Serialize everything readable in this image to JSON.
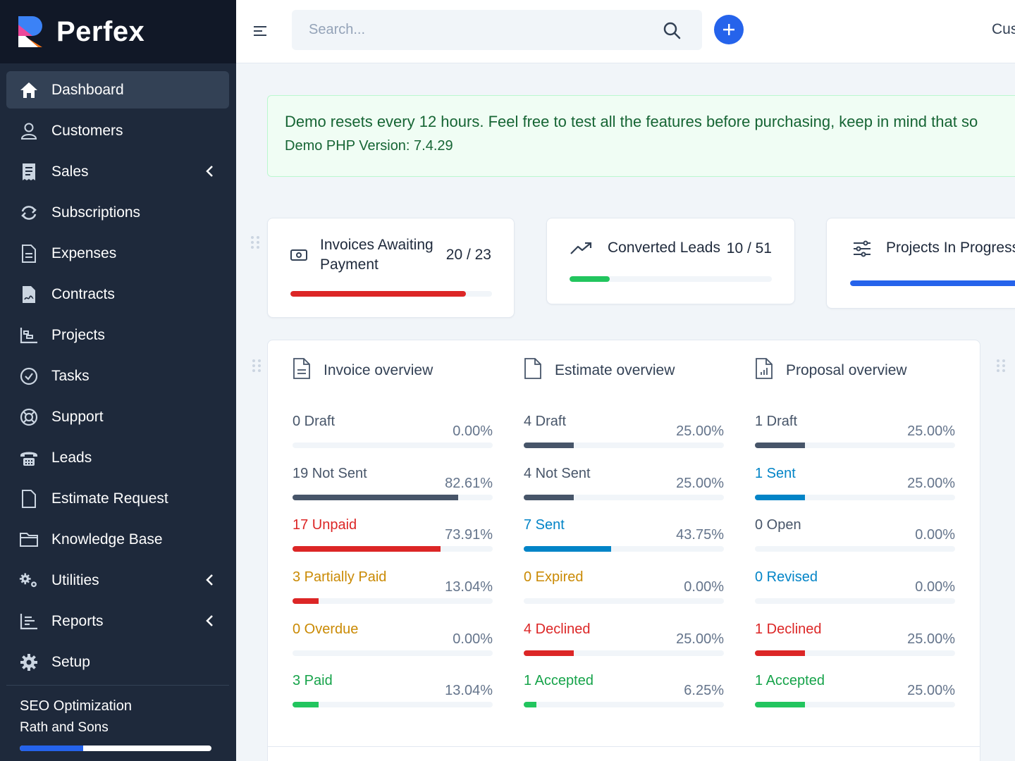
{
  "brand": {
    "name": "Perfex",
    "colors": {
      "r_top": "#3b82f6",
      "r_mid": "#ec4899",
      "r_bottom": "#f97316"
    }
  },
  "sidebar": {
    "items": [
      {
        "label": "Dashboard",
        "icon": "home-icon",
        "active": true,
        "chevron": false
      },
      {
        "label": "Customers",
        "icon": "user-icon",
        "active": false,
        "chevron": false
      },
      {
        "label": "Sales",
        "icon": "receipt-icon",
        "active": false,
        "chevron": true
      },
      {
        "label": "Subscriptions",
        "icon": "refresh-icon",
        "active": false,
        "chevron": false
      },
      {
        "label": "Expenses",
        "icon": "document-icon",
        "active": false,
        "chevron": false
      },
      {
        "label": "Contracts",
        "icon": "contract-icon",
        "active": false,
        "chevron": false
      },
      {
        "label": "Projects",
        "icon": "chart-icon",
        "active": false,
        "chevron": false
      },
      {
        "label": "Tasks",
        "icon": "check-circle-icon",
        "active": false,
        "chevron": false
      },
      {
        "label": "Support",
        "icon": "lifebuoy-icon",
        "active": false,
        "chevron": false
      },
      {
        "label": "Leads",
        "icon": "phone-icon",
        "active": false,
        "chevron": false
      },
      {
        "label": "Estimate Request",
        "icon": "file-icon",
        "active": false,
        "chevron": false
      },
      {
        "label": "Knowledge Base",
        "icon": "folder-icon",
        "active": false,
        "chevron": false
      },
      {
        "label": "Utilities",
        "icon": "cogs-icon",
        "active": false,
        "chevron": true
      },
      {
        "label": "Reports",
        "icon": "bar-chart-icon",
        "active": false,
        "chevron": true
      },
      {
        "label": "Setup",
        "icon": "gear-icon",
        "active": false,
        "chevron": false
      }
    ],
    "project": {
      "title": "SEO Optimization",
      "client": "Rath and Sons",
      "progress": 0.33
    }
  },
  "topbar": {
    "search_placeholder": "Search...",
    "link_text": "Cus"
  },
  "alert": {
    "message": "Demo resets every 12 hours. Feel free to test all the features before purchasing, keep in mind that so",
    "version": "Demo PHP Version: 7.4.29"
  },
  "stats": [
    {
      "label_line1": "Invoices Awaiting",
      "label_line2": "Payment",
      "value": "20 / 23",
      "progress": 0.87,
      "color": "#dc2626",
      "icon": "money-icon"
    },
    {
      "label_line1": "Converted Leads",
      "label_line2": "",
      "value": "10 / 51",
      "progress": 0.2,
      "color": "#22c55e",
      "icon": "trend-up-icon"
    },
    {
      "label_line1": "Projects In Progress",
      "label_line2": "",
      "value": "",
      "progress": 1.0,
      "color": "#2563eb",
      "icon": "sliders-icon"
    }
  ],
  "overview": [
    {
      "title": "Invoice overview",
      "icon": "invoice-doc-icon",
      "rows": [
        {
          "label": "0 Draft",
          "pct": "0.00%",
          "value": 0.0,
          "label_color": "#475569",
          "bar_color": "#475569"
        },
        {
          "label": "19 Not Sent",
          "pct": "82.61%",
          "value": 0.8261,
          "label_color": "#475569",
          "bar_color": "#475569"
        },
        {
          "label": "17 Unpaid",
          "pct": "73.91%",
          "value": 0.7391,
          "label_color": "#dc2626",
          "bar_color": "#dc2626"
        },
        {
          "label": "3 Partially Paid",
          "pct": "13.04%",
          "value": 0.1304,
          "label_color": "#ca8a04",
          "bar_color": "#dc2626"
        },
        {
          "label": "0 Overdue",
          "pct": "0.00%",
          "value": 0.0,
          "label_color": "#ca8a04",
          "bar_color": "#ca8a04"
        },
        {
          "label": "3 Paid",
          "pct": "13.04%",
          "value": 0.1304,
          "label_color": "#16a34a",
          "bar_color": "#22c55e"
        }
      ]
    },
    {
      "title": "Estimate overview",
      "icon": "estimate-doc-icon",
      "rows": [
        {
          "label": "4 Draft",
          "pct": "25.00%",
          "value": 0.25,
          "label_color": "#475569",
          "bar_color": "#475569"
        },
        {
          "label": "4 Not Sent",
          "pct": "25.00%",
          "value": 0.25,
          "label_color": "#475569",
          "bar_color": "#475569"
        },
        {
          "label": "7 Sent",
          "pct": "43.75%",
          "value": 0.4375,
          "label_color": "#0284c7",
          "bar_color": "#0284c7"
        },
        {
          "label": "0 Expired",
          "pct": "0.00%",
          "value": 0.0,
          "label_color": "#ca8a04",
          "bar_color": "#ca8a04"
        },
        {
          "label": "4 Declined",
          "pct": "25.00%",
          "value": 0.25,
          "label_color": "#dc2626",
          "bar_color": "#dc2626"
        },
        {
          "label": "1 Accepted",
          "pct": "6.25%",
          "value": 0.0625,
          "label_color": "#16a34a",
          "bar_color": "#22c55e"
        }
      ]
    },
    {
      "title": "Proposal overview",
      "icon": "proposal-doc-icon",
      "rows": [
        {
          "label": "1 Draft",
          "pct": "25.00%",
          "value": 0.25,
          "label_color": "#475569",
          "bar_color": "#475569"
        },
        {
          "label": "1 Sent",
          "pct": "25.00%",
          "value": 0.25,
          "label_color": "#0284c7",
          "bar_color": "#0284c7"
        },
        {
          "label": "0 Open",
          "pct": "0.00%",
          "value": 0.0,
          "label_color": "#475569",
          "bar_color": "#475569"
        },
        {
          "label": "0 Revised",
          "pct": "0.00%",
          "value": 0.0,
          "label_color": "#0284c7",
          "bar_color": "#0284c7"
        },
        {
          "label": "1 Declined",
          "pct": "25.00%",
          "value": 0.25,
          "label_color": "#dc2626",
          "bar_color": "#dc2626"
        },
        {
          "label": "1 Accepted",
          "pct": "25.00%",
          "value": 0.25,
          "label_color": "#16a34a",
          "bar_color": "#22c55e"
        }
      ]
    }
  ]
}
